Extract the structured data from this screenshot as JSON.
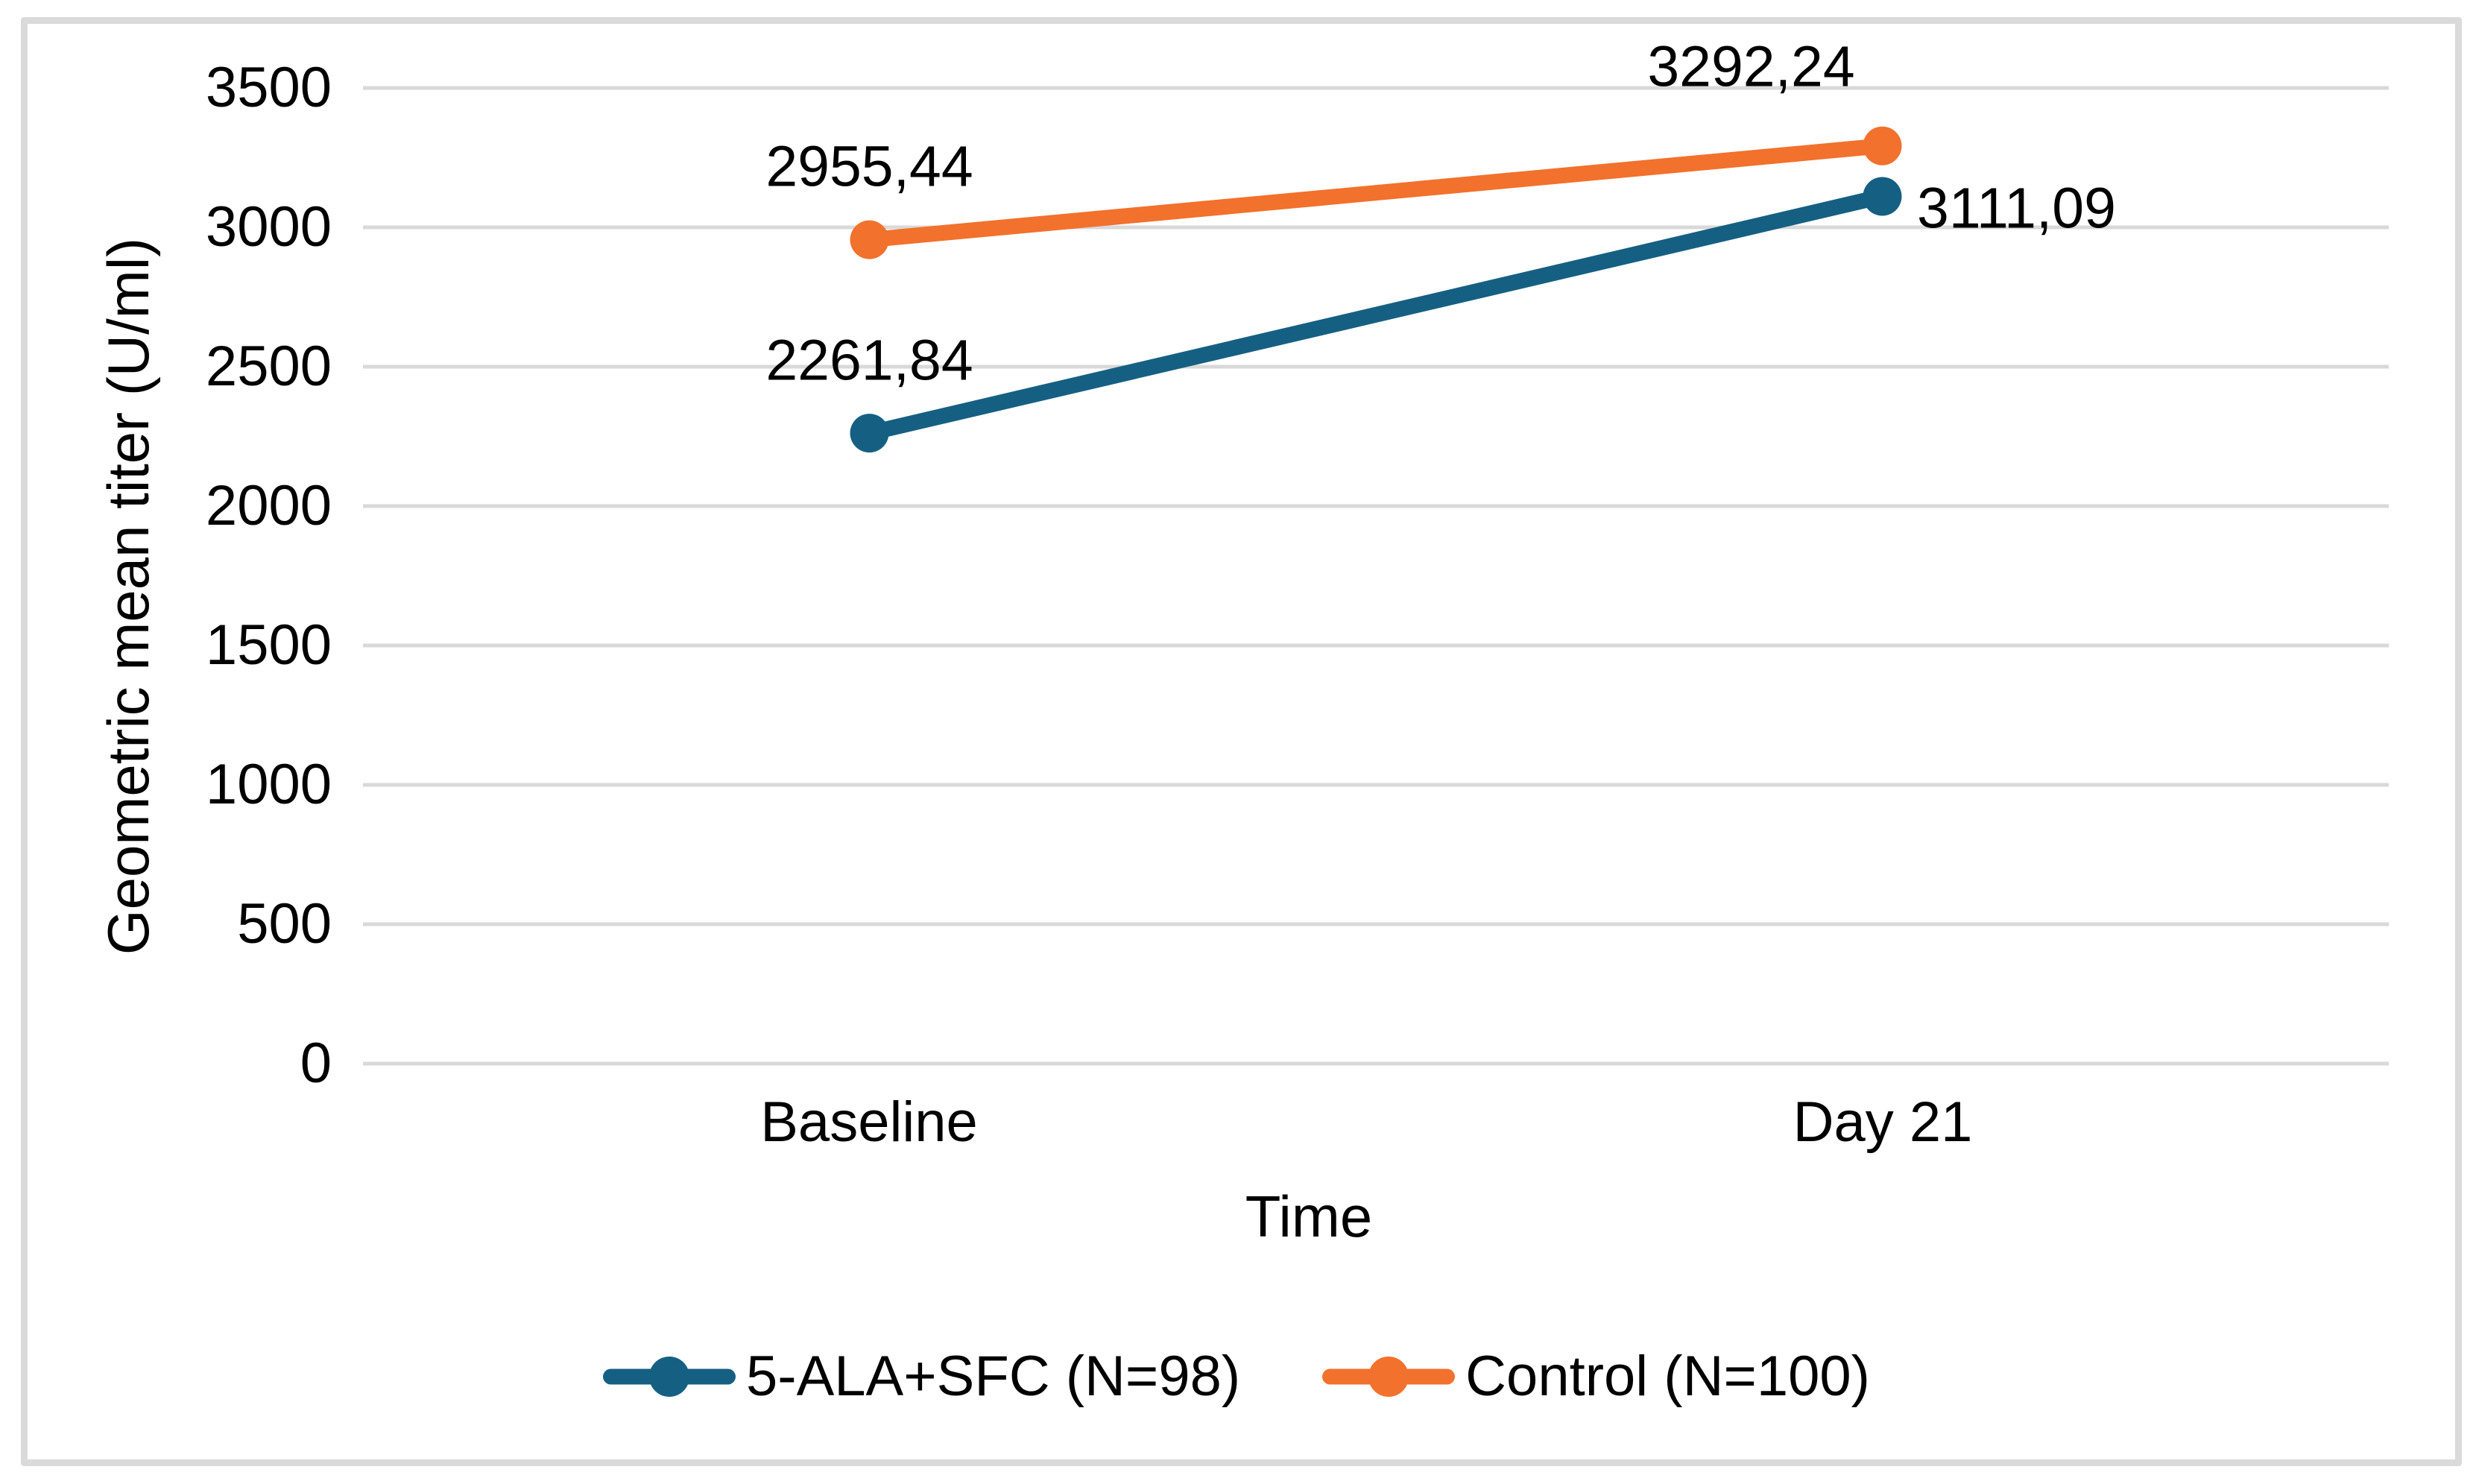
{
  "chart_data": {
    "type": "line",
    "xlabel": "Time",
    "ylabel": "Geometric mean titer (U/ml)",
    "categories": [
      "Baseline",
      "Day 21"
    ],
    "series": [
      {
        "name": "5-ALA+SFC (N=98)",
        "color": "#156082",
        "values": [
          2261.84,
          3111.09
        ],
        "labels": [
          "2261,84",
          "3111,09"
        ]
      },
      {
        "name": "Control (N=100)",
        "color": "#F2712C",
        "values": [
          2955.44,
          3292.24
        ],
        "labels": [
          "2955,44",
          "3292,24"
        ]
      }
    ],
    "ylim": [
      0,
      3500
    ],
    "ytick_step": 500,
    "ytick_labels": [
      "0",
      "500",
      "1000",
      "1500",
      "2000",
      "2500",
      "3000",
      "3500"
    ],
    "grid": true,
    "legend_position": "bottom"
  },
  "colors": {
    "gridline": "#d9d9d9",
    "frame_border": "#dadada",
    "text": "#000000",
    "background": "#ffffff"
  }
}
